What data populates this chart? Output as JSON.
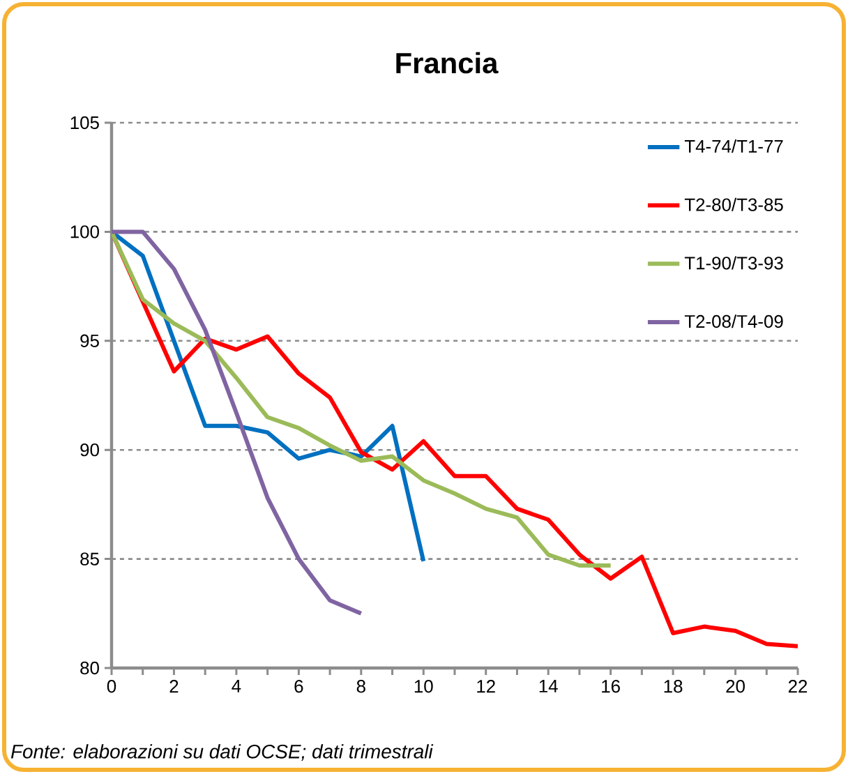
{
  "chart_data": {
    "type": "line",
    "title": "Francia",
    "annotations": [
      "*Fonte: elaborazioni su dati OCSE; dati trimestrali*"
    ],
    "x": [
      0,
      1,
      2,
      3,
      4,
      5,
      6,
      7,
      8,
      9,
      10,
      11,
      12,
      13,
      14,
      15,
      16,
      17,
      18,
      19,
      20,
      21,
      22
    ],
    "series": [
      {
        "name": "T4-74/T1-77",
        "color": "#0070c0",
        "values": [
          100,
          98.9,
          95.0,
          91.1,
          91.1,
          90.8,
          89.6,
          90.0,
          89.7,
          91.1,
          84.9,
          null,
          null,
          null,
          null,
          null,
          null,
          null,
          null,
          null,
          null,
          null,
          null
        ]
      },
      {
        "name": "T2-80/T3-85",
        "color": "#ff0000",
        "values": [
          100,
          96.8,
          93.6,
          95.1,
          94.6,
          95.2,
          93.5,
          92.4,
          89.9,
          89.1,
          90.4,
          88.8,
          88.8,
          87.3,
          86.8,
          85.2,
          84.1,
          85.1,
          81.6,
          81.9,
          81.7,
          81.1,
          81.0
        ]
      },
      {
        "name": "T1-90/T3-93",
        "color": "#9bbb59",
        "values": [
          100,
          96.9,
          95.8,
          95.0,
          93.3,
          91.5,
          91.0,
          90.2,
          89.5,
          89.7,
          88.6,
          88.0,
          87.3,
          86.9,
          85.2,
          84.7,
          84.7,
          null,
          null,
          null,
          null,
          null,
          null
        ]
      },
      {
        "name": "T2-08/T4-09",
        "color": "#8064a2",
        "values": [
          100,
          100,
          98.3,
          95.5,
          91.7,
          87.8,
          85.0,
          83.1,
          82.5,
          null,
          null,
          null,
          null,
          null,
          null,
          null,
          null,
          null,
          null,
          null,
          null,
          null,
          null
        ]
      }
    ],
    "xlim": [
      0,
      22
    ],
    "ylim": [
      80,
      105
    ],
    "xticks": [
      0,
      {
        "value": 1,
        "label": null
      },
      2,
      {
        "value": 3,
        "label": null
      },
      4,
      {
        "value": 5,
        "label": null
      },
      6,
      {
        "value": 7,
        "label": null
      },
      8,
      {
        "value": 9,
        "label": null
      },
      10,
      {
        "value": 11,
        "label": null
      },
      12,
      {
        "value": 13,
        "label": null
      },
      14,
      {
        "value": 15,
        "label": null
      },
      16,
      {
        "value": 17,
        "label": null
      },
      18,
      {
        "value": 19,
        "label": null
      },
      20,
      {
        "value": 21,
        "label": null
      },
      22
    ],
    "yticks": [
      80,
      85,
      90,
      95,
      100,
      105
    ],
    "grid": "y",
    "legend": "top right",
    "marker": "none",
    "line_style": "solid"
  }
}
